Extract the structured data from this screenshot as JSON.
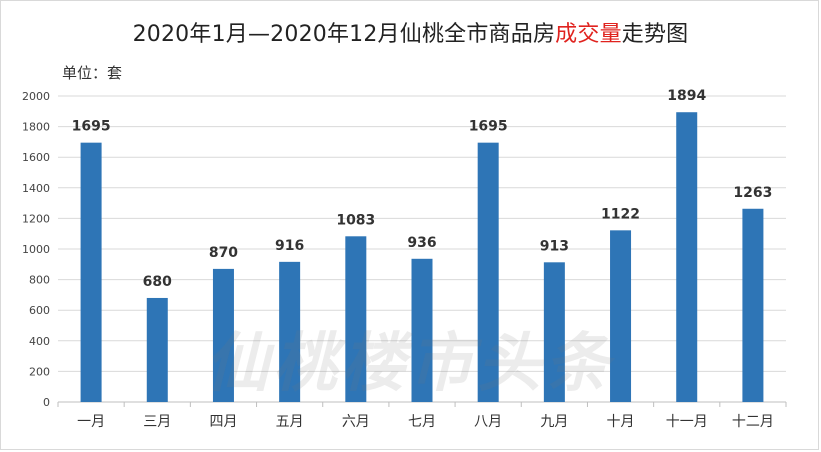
{
  "title": {
    "prefix": "2020年1月—2020年12月仙桃全市商品房",
    "highlight": "成交量",
    "suffix": "走势图"
  },
  "unit_label": "单位：套",
  "watermark": "仙桃楼市头条",
  "colors": {
    "bar": "#2e75b6",
    "highlight": "#e0231f",
    "grid": "#d9d9d9"
  },
  "chart_data": {
    "type": "bar",
    "title": "2020年1月—2020年12月仙桃全市商品房成交量走势图",
    "ylabel": "单位：套",
    "xlabel": "",
    "categories": [
      "一月",
      "三月",
      "四月",
      "五月",
      "六月",
      "七月",
      "八月",
      "九月",
      "十月",
      "十一月",
      "十二月"
    ],
    "values": [
      1695,
      680,
      870,
      916,
      1083,
      936,
      1695,
      913,
      1122,
      1894,
      1263
    ],
    "ylim": [
      0,
      2000
    ],
    "yticks": [
      0,
      200,
      400,
      600,
      800,
      1000,
      1200,
      1400,
      1600,
      1800,
      2000
    ],
    "grid": true,
    "data_labels": true
  }
}
